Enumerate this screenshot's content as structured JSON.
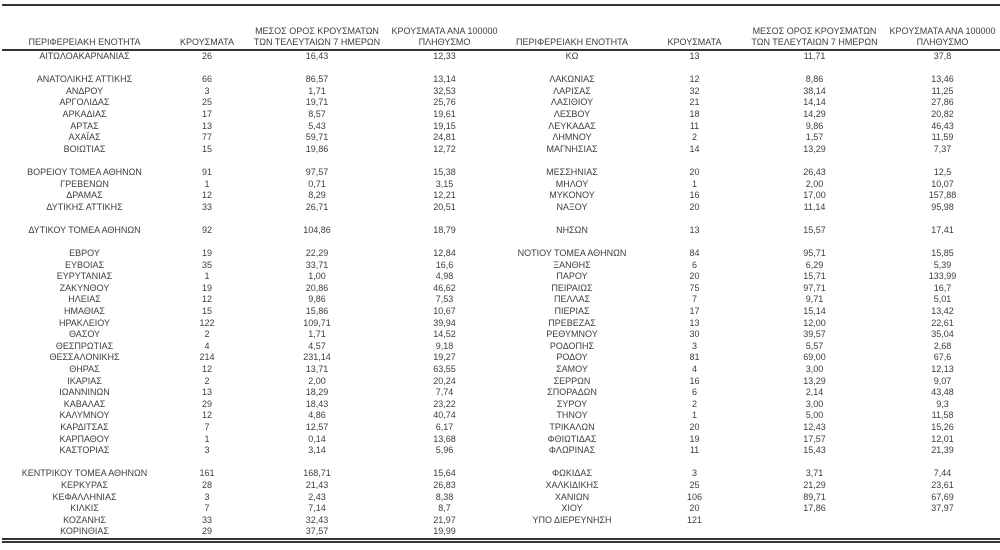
{
  "colors": {
    "rule_color": "#343434",
    "text_color": "#3d3d3d",
    "background": "#ffffff"
  },
  "table": {
    "column_headers": [
      "ΠΕΡΙΦΕΡΕΙΑΚΗ ΕΝΟΤΗΤΑ",
      "ΚΡΟΥΣΜΑΤΑ",
      "ΜΕΣΟΣ ΟΡΟΣ ΚΡΟΥΣΜΑΤΩΝ ΤΩΝ ΤΕΛΕΥΤΑΙΩΝ 7 ΗΜΕΡΩΝ",
      "ΚΡΟΥΣΜΑΤΑ ΑΝΑ 100000 ΠΛΗΘΥΣΜΟ"
    ],
    "rows": [
      [
        "ΑΙΤΩΛΟΑΚΑΡΝΑΝΙΑΣ",
        "26",
        "16,43",
        "12,33",
        "ΚΩ",
        "13",
        "11,71",
        "37,8"
      ],
      [
        "",
        "",
        "",
        "",
        "",
        "",
        "",
        ""
      ],
      [
        "ΑΝΑΤΟΛΙΚΗΣ ΑΤΤΙΚΗΣ",
        "66",
        "86,57",
        "13,14",
        "ΛΑΚΩΝΙΑΣ",
        "12",
        "8,86",
        "13,46"
      ],
      [
        "ΑΝΔΡΟΥ",
        "3",
        "1,71",
        "32,53",
        "ΛΑΡΙΣΑΣ",
        "32",
        "38,14",
        "11,25"
      ],
      [
        "ΑΡΓΟΛΙΔΑΣ",
        "25",
        "19,71",
        "25,76",
        "ΛΑΣΙΘΙΟΥ",
        "21",
        "14,14",
        "27,86"
      ],
      [
        "ΑΡΚΑΔΙΑΣ",
        "17",
        "8,57",
        "19,61",
        "ΛΕΣΒΟΥ",
        "18",
        "14,29",
        "20,82"
      ],
      [
        "ΑΡΤΑΣ",
        "13",
        "5,43",
        "19,15",
        "ΛΕΥΚΑΔΑΣ",
        "11",
        "9,86",
        "46,43"
      ],
      [
        "ΑΧΑΪΑΣ",
        "77",
        "59,71",
        "24,81",
        "ΛΗΜΝΟΥ",
        "2",
        "1,57",
        "11,59"
      ],
      [
        "ΒΟΙΩΤΙΑΣ",
        "15",
        "19,86",
        "12,72",
        "ΜΑΓΝΗΣΙΑΣ",
        "14",
        "13,29",
        "7,37"
      ],
      [
        "",
        "",
        "",
        "",
        "",
        "",
        "",
        ""
      ],
      [
        "ΒΟΡΕΙΟΥ ΤΟΜΕΑ ΑΘΗΝΩΝ",
        "91",
        "97,57",
        "15,38",
        "ΜΕΣΣΗΝΙΑΣ",
        "20",
        "26,43",
        "12,5"
      ],
      [
        "ΓΡΕΒΕΝΩΝ",
        "1",
        "0,71",
        "3,15",
        "ΜΗΛΟΥ",
        "1",
        "2,00",
        "10,07"
      ],
      [
        "ΔΡΑΜΑΣ",
        "12",
        "8,29",
        "12,21",
        "ΜΥΚΟΝΟΥ",
        "16",
        "17,00",
        "157,88"
      ],
      [
        "ΔΥΤΙΚΗΣ ΑΤΤΙΚΗΣ",
        "33",
        "26,71",
        "20,51",
        "ΝΑΞΟΥ",
        "20",
        "11,14",
        "95,98"
      ],
      [
        "",
        "",
        "",
        "",
        "",
        "",
        "",
        ""
      ],
      [
        "ΔΥΤΙΚΟΥ ΤΟΜΕΑ ΑΘΗΝΩΝ",
        "92",
        "104,86",
        "18,79",
        "ΝΗΣΩΝ",
        "13",
        "15,57",
        "17,41"
      ],
      [
        "",
        "",
        "",
        "",
        "",
        "",
        "",
        ""
      ],
      [
        "ΕΒΡΟΥ",
        "19",
        "22,29",
        "12,84",
        "ΝΟΤΙΟΥ ΤΟΜΕΑ ΑΘΗΝΩΝ",
        "84",
        "95,71",
        "15,85"
      ],
      [
        "ΕΥΒΟΙΑΣ",
        "35",
        "33,71",
        "16,6",
        "ΞΑΝΘΗΣ",
        "6",
        "6,29",
        "5,39"
      ],
      [
        "ΕΥΡΥΤΑΝΙΑΣ",
        "1",
        "1,00",
        "4,98",
        "ΠΑΡΟΥ",
        "20",
        "15,71",
        "133,99"
      ],
      [
        "ΖΑΚΥΝΘΟΥ",
        "19",
        "20,86",
        "46,62",
        "ΠΕΙΡΑΙΩΣ",
        "75",
        "97,71",
        "16,7"
      ],
      [
        "ΗΛΕΙΑΣ",
        "12",
        "9,86",
        "7,53",
        "ΠΕΛΛΑΣ",
        "7",
        "9,71",
        "5,01"
      ],
      [
        "ΗΜΑΘΙΑΣ",
        "15",
        "15,86",
        "10,67",
        "ΠΙΕΡΙΑΣ",
        "17",
        "15,14",
        "13,42"
      ],
      [
        "ΗΡΑΚΛΕΙΟΥ",
        "122",
        "109,71",
        "39,94",
        "ΠΡΕΒΕΖΑΣ",
        "13",
        "12,00",
        "22,61"
      ],
      [
        "ΘΑΣΟΥ",
        "2",
        "1,71",
        "14,52",
        "ΡΕΘΥΜΝΟΥ",
        "30",
        "39,57",
        "35,04"
      ],
      [
        "ΘΕΣΠΡΩΤΙΑΣ",
        "4",
        "4,57",
        "9,18",
        "ΡΟΔΟΠΗΣ",
        "3",
        "5,57",
        "2,68"
      ],
      [
        "ΘΕΣΣΑΛΟΝΙΚΗΣ",
        "214",
        "231,14",
        "19,27",
        "ΡΟΔΟΥ",
        "81",
        "69,00",
        "67,6"
      ],
      [
        "ΘΗΡΑΣ",
        "12",
        "13,71",
        "63,55",
        "ΣΑΜΟΥ",
        "4",
        "3,00",
        "12,13"
      ],
      [
        "ΙΚΑΡΙΑΣ",
        "2",
        "2,00",
        "20,24",
        "ΣΕΡΡΩΝ",
        "16",
        "13,29",
        "9,07"
      ],
      [
        "ΙΩΑΝΝΙΝΩΝ",
        "13",
        "18,29",
        "7,74",
        "ΣΠΟΡΑΔΩΝ",
        "6",
        "2,14",
        "43,48"
      ],
      [
        "ΚΑΒΑΛΑΣ",
        "29",
        "18,43",
        "23,22",
        "ΣΥΡΟΥ",
        "2",
        "3,00",
        "9,3"
      ],
      [
        "ΚΑΛΥΜΝΟΥ",
        "12",
        "4,86",
        "40,74",
        "ΤΗΝΟΥ",
        "1",
        "5,00",
        "11,58"
      ],
      [
        "ΚΑΡΔΙΤΣΑΣ",
        "7",
        "12,57",
        "6,17",
        "ΤΡΙΚΑΛΩΝ",
        "20",
        "12,43",
        "15,26"
      ],
      [
        "ΚΑΡΠΑΘΟΥ",
        "1",
        "0,14",
        "13,68",
        "ΦΘΙΩΤΙΔΑΣ",
        "19",
        "17,57",
        "12,01"
      ],
      [
        "ΚΑΣΤΟΡΙΑΣ",
        "3",
        "3,14",
        "5,96",
        "ΦΛΩΡΙΝΑΣ",
        "11",
        "15,43",
        "21,39"
      ],
      [
        "",
        "",
        "",
        "",
        "",
        "",
        "",
        ""
      ],
      [
        "ΚΕΝΤΡΙΚΟΥ ΤΟΜΕΑ ΑΘΗΝΩΝ",
        "161",
        "168,71",
        "15,64",
        "ΦΩΚΙΔΑΣ",
        "3",
        "3,71",
        "7,44"
      ],
      [
        "ΚΕΡΚΥΡΑΣ",
        "28",
        "21,43",
        "26,83",
        "ΧΑΛΚΙΔΙΚΗΣ",
        "25",
        "21,29",
        "23,61"
      ],
      [
        "ΚΕΦΑΛΛΗΝΙΑΣ",
        "3",
        "2,43",
        "8,38",
        "ΧΑΝΙΩΝ",
        "106",
        "89,71",
        "67,69"
      ],
      [
        "ΚΙΛΚΙΣ",
        "7",
        "7,14",
        "8,7",
        "ΧΙΟΥ",
        "20",
        "17,86",
        "37,97"
      ],
      [
        "ΚΟΖΑΝΗΣ",
        "33",
        "32,43",
        "21,97",
        "ΥΠΟ ΔΙΕΡΕΥΝΗΣΗ",
        "121",
        "",
        ""
      ],
      [
        "ΚΟΡΙΝΘΙΑΣ",
        "29",
        "37,57",
        "19,99",
        "",
        "",
        "",
        ""
      ]
    ]
  }
}
